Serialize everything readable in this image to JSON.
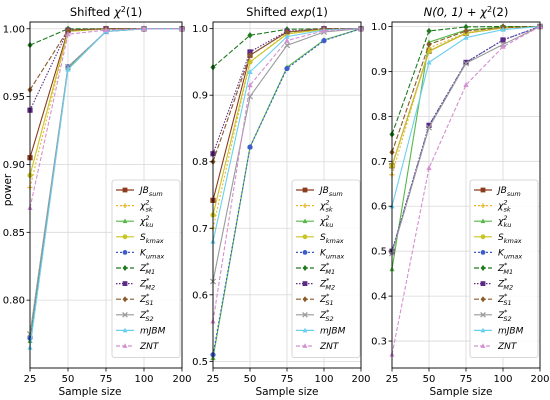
{
  "figure": {
    "ylabel": "power",
    "xlabel": "Sample size"
  },
  "legend": [
    {
      "key": "JBsum",
      "base": "JB",
      "sub": "sum",
      "sup": ""
    },
    {
      "key": "Xsk",
      "base": "χ",
      "sub": "sk",
      "sup": "2"
    },
    {
      "key": "Xku",
      "base": "χ",
      "sub": "ku",
      "sup": "2"
    },
    {
      "key": "Skmax",
      "base": "S",
      "sub": "kmax",
      "sup": ""
    },
    {
      "key": "Kumax",
      "base": "K",
      "sub": "umax",
      "sup": ""
    },
    {
      "key": "ZM1",
      "base": "Z",
      "sub": "M1",
      "sup": "*"
    },
    {
      "key": "ZM2",
      "base": "Z",
      "sub": "M2",
      "sup": "*"
    },
    {
      "key": "ZS1",
      "base": "Z",
      "sub": "S1",
      "sup": "*"
    },
    {
      "key": "ZS2",
      "base": "Z",
      "sub": "S2",
      "sup": "*"
    },
    {
      "key": "mJBM",
      "base": "mJBM",
      "sub": "",
      "sup": ""
    },
    {
      "key": "ZNT",
      "base": "ZNT",
      "sub": "",
      "sup": ""
    }
  ],
  "styles": {
    "JBsum": {
      "color": "#8c3b1c",
      "dash": "",
      "marker": "square"
    },
    "Xsk": {
      "color": "#e8b829",
      "dash": "2,2",
      "marker": "plus"
    },
    "Xku": {
      "color": "#57b848",
      "dash": "",
      "marker": "triangle"
    },
    "Skmax": {
      "color": "#c9c426",
      "dash": "",
      "marker": "circle"
    },
    "Kumax": {
      "color": "#3d5cc9",
      "dash": "2,2",
      "marker": "circle"
    },
    "ZM1": {
      "color": "#1f7a1f",
      "dash": "5,2",
      "marker": "diamond"
    },
    "ZM2": {
      "color": "#5a2a84",
      "dash": "1.5,1.5",
      "marker": "square"
    },
    "ZS1": {
      "color": "#8a5a2b",
      "dash": "5,2",
      "marker": "diamond"
    },
    "ZS2": {
      "color": "#9a9a9a",
      "dash": "",
      "marker": "x"
    },
    "mJBM": {
      "color": "#6ccff0",
      "dash": "",
      "marker": "triangle"
    },
    "ZNT": {
      "color": "#d38fd0",
      "dash": "4,2",
      "marker": "triangle"
    }
  },
  "chart_data": [
    {
      "type": "line",
      "title": "Shifted χ²(1)",
      "title_parts": {
        "pre": "Shifted ",
        "base": "χ",
        "sup": "2",
        "post": "(1)"
      },
      "x": [
        25,
        50,
        75,
        100,
        200
      ],
      "xticks": [
        "25",
        "50",
        "75",
        "100",
        "200"
      ],
      "ylim": [
        0.75,
        1.005
      ],
      "yticks": [
        0.8,
        0.85,
        0.9,
        0.95,
        1.0
      ],
      "ytick_labels": [
        "0.80",
        "0.85",
        "0.90",
        "0.95",
        "1.00"
      ],
      "series": [
        {
          "key": "JBsum",
          "values": [
            0.905,
            0.999,
            1.0,
            1.0,
            1.0
          ]
        },
        {
          "key": "Xsk",
          "values": [
            0.883,
            0.998,
            1.0,
            1.0,
            1.0
          ]
        },
        {
          "key": "Xku",
          "values": [
            0.77,
            0.971,
            0.998,
            1.0,
            1.0
          ]
        },
        {
          "key": "Skmax",
          "values": [
            0.892,
            0.998,
            1.0,
            1.0,
            1.0
          ]
        },
        {
          "key": "Kumax",
          "values": [
            0.772,
            0.972,
            0.998,
            1.0,
            1.0
          ]
        },
        {
          "key": "ZM1",
          "values": [
            0.988,
            1.0,
            1.0,
            1.0,
            1.0
          ]
        },
        {
          "key": "ZM2",
          "values": [
            0.94,
            0.999,
            1.0,
            1.0,
            1.0
          ]
        },
        {
          "key": "ZS1",
          "values": [
            0.955,
            0.999,
            1.0,
            1.0,
            1.0
          ]
        },
        {
          "key": "ZS2",
          "values": [
            0.775,
            0.972,
            0.998,
            1.0,
            1.0
          ]
        },
        {
          "key": "mJBM",
          "values": [
            0.765,
            0.97,
            0.998,
            1.0,
            1.0
          ]
        },
        {
          "key": "ZNT",
          "values": [
            0.868,
            0.996,
            0.999,
            1.0,
            1.0
          ]
        }
      ]
    },
    {
      "type": "line",
      "title": "Shifted exp(1)",
      "title_parts": {
        "pre": "Shifted ",
        "base": "exp",
        "sup": "",
        "post": "(1)"
      },
      "x": [
        25,
        50,
        75,
        100,
        200
      ],
      "xticks": [
        "25",
        "50",
        "75",
        "100",
        "200"
      ],
      "ylim": [
        0.49,
        1.01
      ],
      "yticks": [
        0.5,
        0.6,
        0.7,
        0.8,
        0.9,
        1.0
      ],
      "ytick_labels": [
        "0.5",
        "0.6",
        "0.7",
        "0.8",
        "0.9",
        "1.0"
      ],
      "series": [
        {
          "key": "JBsum",
          "values": [
            0.742,
            0.96,
            0.995,
            0.999,
            1.0
          ]
        },
        {
          "key": "Xsk",
          "values": [
            0.7,
            0.95,
            0.993,
            0.999,
            1.0
          ]
        },
        {
          "key": "Xku",
          "values": [
            0.505,
            0.822,
            0.942,
            0.983,
            1.0
          ]
        },
        {
          "key": "Skmax",
          "values": [
            0.72,
            0.95,
            0.992,
            0.999,
            1.0
          ]
        },
        {
          "key": "Kumax",
          "values": [
            0.51,
            0.822,
            0.94,
            0.982,
            1.0
          ]
        },
        {
          "key": "ZM1",
          "values": [
            0.942,
            0.99,
            0.999,
            1.0,
            1.0
          ]
        },
        {
          "key": "ZM2",
          "values": [
            0.812,
            0.965,
            0.996,
            1.0,
            1.0
          ]
        },
        {
          "key": "ZS1",
          "values": [
            0.8,
            0.96,
            0.995,
            1.0,
            1.0
          ]
        },
        {
          "key": "ZS2",
          "values": [
            0.62,
            0.898,
            0.975,
            0.995,
            1.0
          ]
        },
        {
          "key": "mJBM",
          "values": [
            0.68,
            0.935,
            0.988,
            0.998,
            1.0
          ]
        },
        {
          "key": "ZNT",
          "values": [
            0.56,
            0.915,
            0.982,
            0.997,
            1.0
          ]
        }
      ]
    },
    {
      "type": "line",
      "title": "N(0, 1) + χ²(2)",
      "title_parts": {
        "pre": "",
        "base": "N(0, 1) + χ",
        "sup": "2",
        "post": "(2)"
      },
      "x": [
        25,
        50,
        75,
        100,
        200
      ],
      "xticks": [
        "25",
        "50",
        "75",
        "100",
        "200"
      ],
      "ylim": [
        0.24,
        1.01
      ],
      "yticks": [
        0.3,
        0.4,
        0.5,
        0.6,
        0.7,
        0.8,
        0.9,
        1.0
      ],
      "ytick_labels": [
        "0.3",
        "0.4",
        "0.5",
        "0.6",
        "0.7",
        "0.8",
        "0.9",
        "1.0"
      ],
      "series": [
        {
          "key": "JBsum",
          "values": [
            0.69,
            0.945,
            0.985,
            0.997,
            1.0
          ]
        },
        {
          "key": "Xsk",
          "values": [
            0.67,
            0.952,
            0.986,
            0.997,
            1.0
          ]
        },
        {
          "key": "Xku",
          "values": [
            0.46,
            0.965,
            0.992,
            0.999,
            1.0
          ]
        },
        {
          "key": "Skmax",
          "values": [
            0.69,
            0.945,
            0.985,
            0.997,
            1.0
          ]
        },
        {
          "key": "Kumax",
          "values": [
            0.5,
            0.78,
            0.92,
            0.97,
            1.0
          ]
        },
        {
          "key": "ZM1",
          "values": [
            0.76,
            0.99,
            0.999,
            1.0,
            1.0
          ]
        },
        {
          "key": "ZM2",
          "values": [
            0.5,
            0.78,
            0.92,
            0.97,
            1.0
          ]
        },
        {
          "key": "ZS1",
          "values": [
            0.72,
            0.96,
            0.99,
            0.998,
            1.0
          ]
        },
        {
          "key": "ZS2",
          "values": [
            0.495,
            0.775,
            0.918,
            0.96,
            1.0
          ]
        },
        {
          "key": "mJBM",
          "values": [
            0.6,
            0.92,
            0.975,
            0.993,
            1.0
          ]
        },
        {
          "key": "ZNT",
          "values": [
            0.27,
            0.685,
            0.87,
            0.955,
            1.0
          ]
        }
      ]
    }
  ]
}
